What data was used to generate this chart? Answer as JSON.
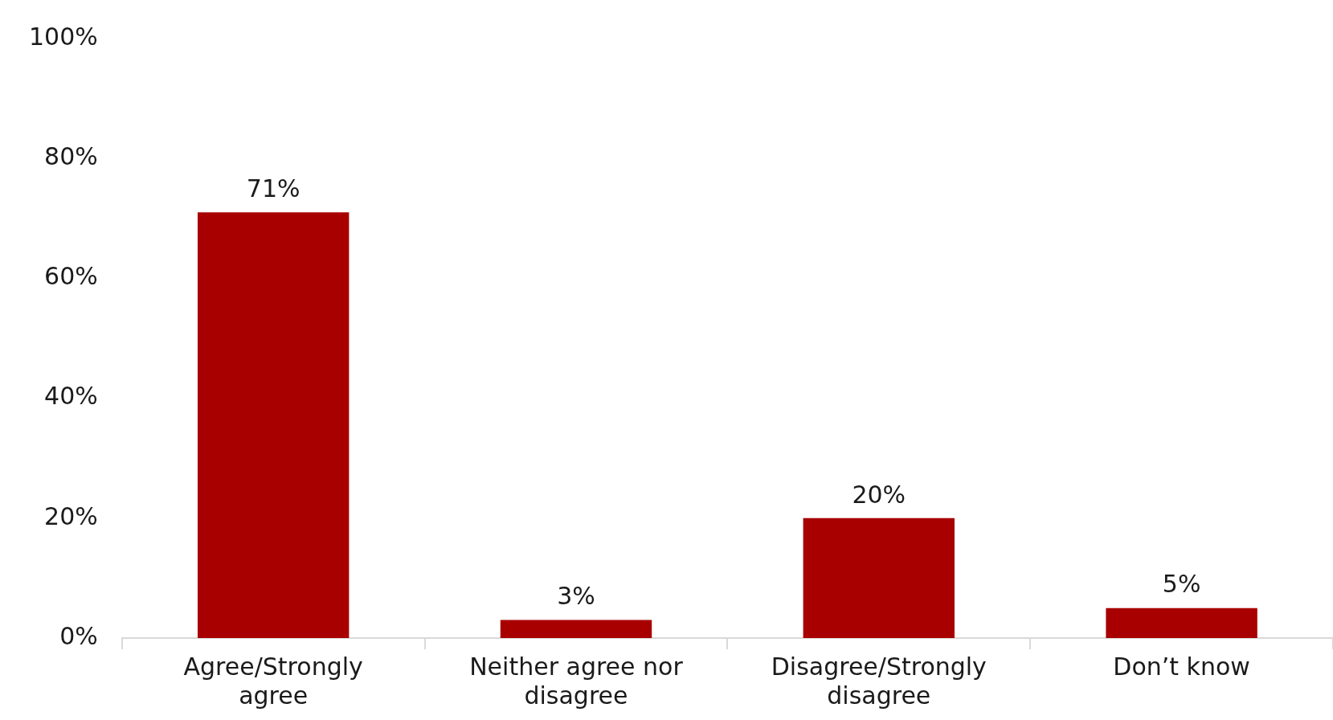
{
  "chart_data": {
    "type": "bar",
    "categories": [
      "Agree/Strongly agree",
      "Neither agree nor disagree",
      "Disagree/Strongly disagree",
      "Don’t know"
    ],
    "values": [
      71,
      3,
      20,
      5
    ],
    "value_labels": [
      "71%",
      "3%",
      "20%",
      "5%"
    ],
    "color": "#a80000",
    "ylim": [
      0,
      100
    ],
    "yticks": [
      {
        "value": 0,
        "label": "0%"
      },
      {
        "value": 20,
        "label": "20%"
      },
      {
        "value": 40,
        "label": "40%"
      },
      {
        "value": 60,
        "label": "60%"
      },
      {
        "value": 80,
        "label": "80%"
      },
      {
        "value": 100,
        "label": "100%"
      }
    ],
    "grid": false,
    "legend": false
  }
}
